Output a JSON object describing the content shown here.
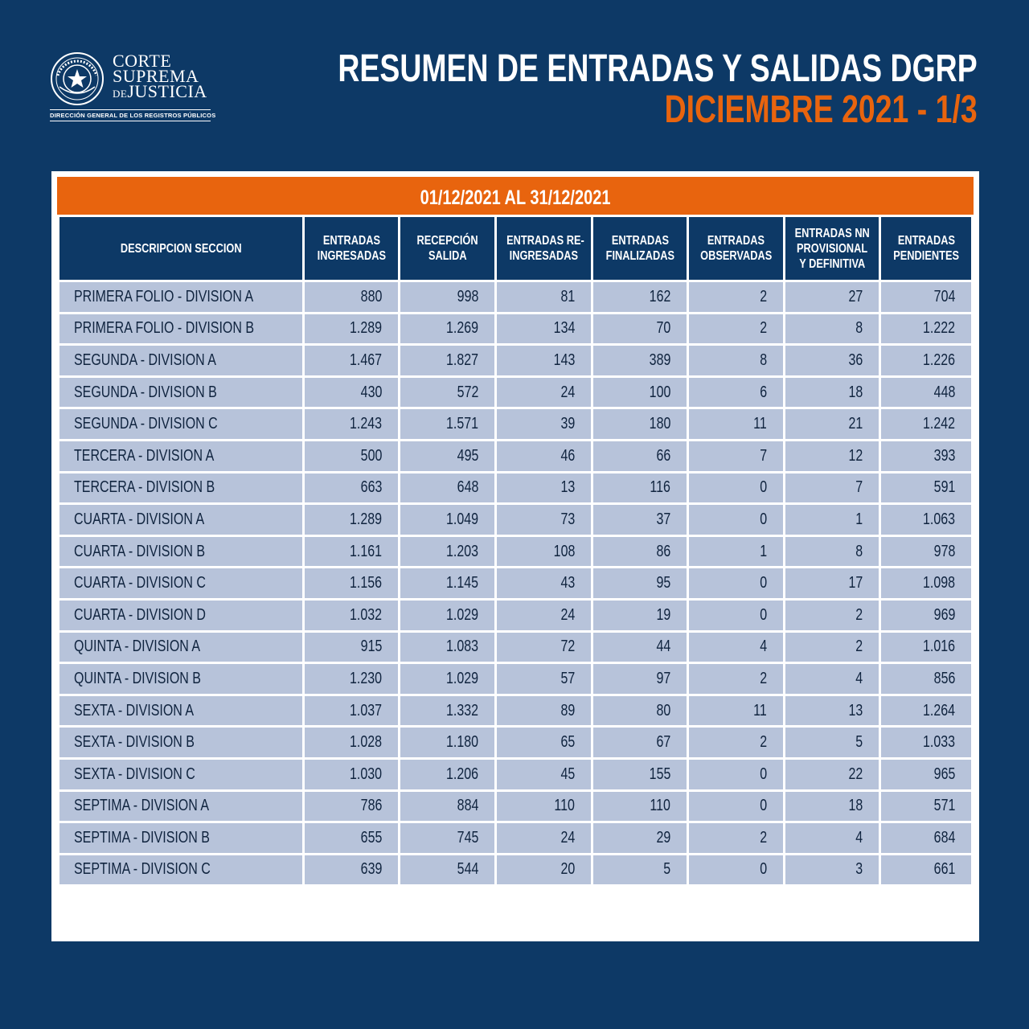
{
  "logo": {
    "line1": "CORTE",
    "line2": "SUPREMA",
    "line3_prefix": "DE",
    "line3": "JUSTICIA",
    "department": "DIRECCIÓN GENERAL DE LOS REGISTROS PÚBLICOS",
    "seal_icon": "paraguay-seal-icon"
  },
  "header": {
    "title": "RESUMEN DE ENTRADAS Y SALIDAS DGRP",
    "subtitle": "DICIEMBRE 2021 - 1/3"
  },
  "colors": {
    "background": "#0d3966",
    "accent": "#e8640e",
    "row": "#b7c3da"
  },
  "table": {
    "period": "01/12/2021 AL 31/12/2021",
    "columns": [
      [
        "DESCRIPCION SECCION"
      ],
      [
        "ENTRADAS",
        "INGRESADAS"
      ],
      [
        "RECEPCIÓN",
        "SALIDA"
      ],
      [
        "ENTRADAS RE-",
        "INGRESADAS"
      ],
      [
        "ENTRADAS",
        "FINALIZADAS"
      ],
      [
        "ENTRADAS",
        "OBSERVADAS"
      ],
      [
        "ENTRADAS NN",
        "PROVISIONAL",
        "Y DEFINITIVA"
      ],
      [
        "ENTRADAS",
        "PENDIENTES"
      ]
    ],
    "rows": [
      [
        "PRIMERA FOLIO - DIVISION A",
        "880",
        "998",
        "81",
        "162",
        "2",
        "27",
        "704"
      ],
      [
        "PRIMERA FOLIO - DIVISION B",
        "1.289",
        "1.269",
        "134",
        "70",
        "2",
        "8",
        "1.222"
      ],
      [
        "SEGUNDA - DIVISION A",
        "1.467",
        "1.827",
        "143",
        "389",
        "8",
        "36",
        "1.226"
      ],
      [
        "SEGUNDA - DIVISION B",
        "430",
        "572",
        "24",
        "100",
        "6",
        "18",
        "448"
      ],
      [
        "SEGUNDA - DIVISION C",
        "1.243",
        "1.571",
        "39",
        "180",
        "11",
        "21",
        "1.242"
      ],
      [
        "TERCERA - DIVISION A",
        "500",
        "495",
        "46",
        "66",
        "7",
        "12",
        "393"
      ],
      [
        "TERCERA - DIVISION B",
        "663",
        "648",
        "13",
        "116",
        "0",
        "7",
        "591"
      ],
      [
        "CUARTA - DIVISION A",
        "1.289",
        "1.049",
        "73",
        "37",
        "0",
        "1",
        "1.063"
      ],
      [
        "CUARTA - DIVISION B",
        "1.161",
        "1.203",
        "108",
        "86",
        "1",
        "8",
        "978"
      ],
      [
        "CUARTA - DIVISION C",
        "1.156",
        "1.145",
        "43",
        "95",
        "0",
        "17",
        "1.098"
      ],
      [
        "CUARTA - DIVISION D",
        "1.032",
        "1.029",
        "24",
        "19",
        "0",
        "2",
        "969"
      ],
      [
        "QUINTA - DIVISION A",
        "915",
        "1.083",
        "72",
        "44",
        "4",
        "2",
        "1.016"
      ],
      [
        "QUINTA - DIVISION B",
        "1.230",
        "1.029",
        "57",
        "97",
        "2",
        "4",
        "856"
      ],
      [
        "SEXTA - DIVISION A",
        "1.037",
        "1.332",
        "89",
        "80",
        "11",
        "13",
        "1.264"
      ],
      [
        "SEXTA - DIVISION B",
        "1.028",
        "1.180",
        "65",
        "67",
        "2",
        "5",
        "1.033"
      ],
      [
        "SEXTA - DIVISION C",
        "1.030",
        "1.206",
        "45",
        "155",
        "0",
        "22",
        "965"
      ],
      [
        "SEPTIMA - DIVISION A",
        "786",
        "884",
        "110",
        "110",
        "0",
        "18",
        "571"
      ],
      [
        "SEPTIMA - DIVISION B",
        "655",
        "745",
        "24",
        "29",
        "2",
        "4",
        "684"
      ],
      [
        "SEPTIMA - DIVISION C",
        "639",
        "544",
        "20",
        "5",
        "0",
        "3",
        "661"
      ]
    ]
  }
}
